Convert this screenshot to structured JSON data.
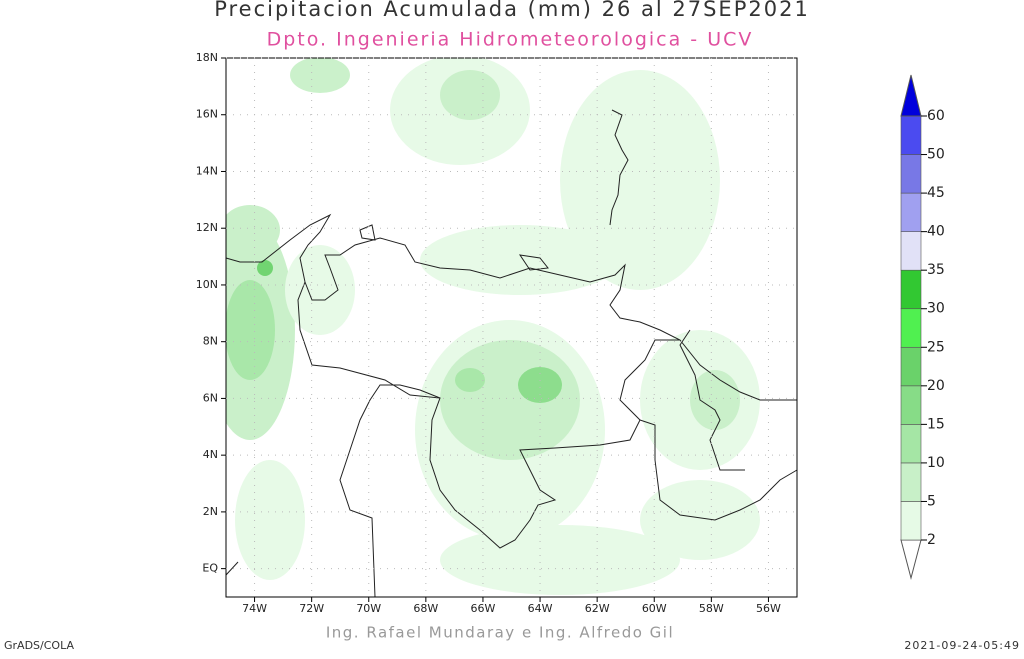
{
  "header": {
    "title": "Precipitacion Acumulada (mm) 26 al 27SEP2021",
    "subtitle": "Dpto. Ingenieria Hidrometeorologica - UCV"
  },
  "map": {
    "xlim": [
      -75,
      -55
    ],
    "ylim": [
      -1,
      18
    ],
    "xticks": [
      {
        "value": -74,
        "label": "74W"
      },
      {
        "value": -72,
        "label": "72W"
      },
      {
        "value": -70,
        "label": "70W"
      },
      {
        "value": -68,
        "label": "68W"
      },
      {
        "value": -66,
        "label": "66W"
      },
      {
        "value": -64,
        "label": "64W"
      },
      {
        "value": -62,
        "label": "62W"
      },
      {
        "value": -60,
        "label": "60W"
      },
      {
        "value": -58,
        "label": "58W"
      },
      {
        "value": -56,
        "label": "56W"
      }
    ],
    "yticks": [
      {
        "value": 0,
        "label": "EQ"
      },
      {
        "value": 2,
        "label": "2N"
      },
      {
        "value": 4,
        "label": "4N"
      },
      {
        "value": 6,
        "label": "6N"
      },
      {
        "value": 8,
        "label": "8N"
      },
      {
        "value": 10,
        "label": "10N"
      },
      {
        "value": 12,
        "label": "12N"
      },
      {
        "value": 14,
        "label": "14N"
      },
      {
        "value": 16,
        "label": "16N"
      },
      {
        "value": 18,
        "label": "18N"
      }
    ],
    "grid": true,
    "colorbar": {
      "levels": [
        2,
        5,
        10,
        15,
        20,
        25,
        30,
        35,
        40,
        45,
        50,
        60
      ],
      "colors": [
        "#ffffff",
        "#e6fae6",
        "#c8f0c8",
        "#a5e6a5",
        "#87dc87",
        "#6ad26a",
        "#50f050",
        "#32c832",
        "#e1e1f7",
        "#a0a0f0",
        "#7878e6",
        "#4b4bf0",
        "#0000dc"
      ]
    }
  },
  "footer": {
    "credits": "Ing. Rafael Mundaray e Ing. Alfredo Gil",
    "left": "GrADS/COLA",
    "right": "2021-09-24-05:49"
  }
}
